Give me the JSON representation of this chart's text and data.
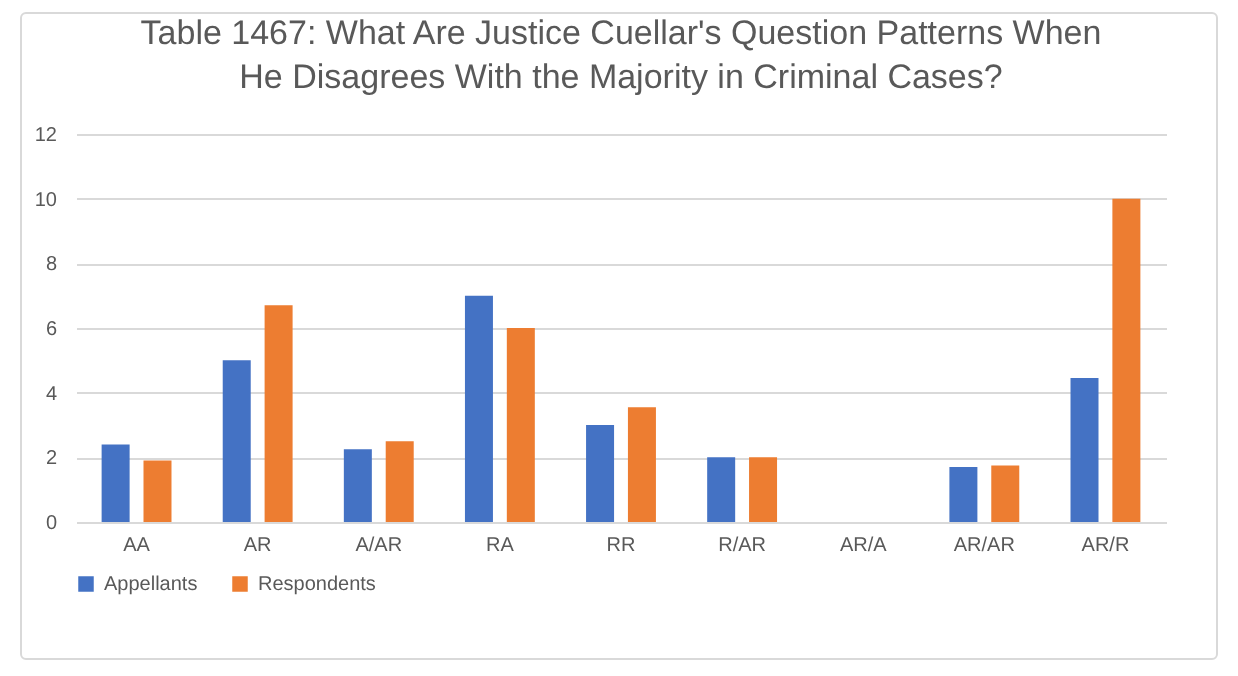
{
  "chart_data": {
    "type": "bar",
    "title": [
      "Table 1467: What Are Justice Cuellar's Question Patterns When",
      "He Disagrees With the Majority in Criminal Cases?"
    ],
    "categories": [
      "AA",
      "AR",
      "A/AR",
      "RA",
      "RR",
      "R/AR",
      "AR/A",
      "AR/AR",
      "AR/R"
    ],
    "series": [
      {
        "name": "Appellants",
        "color": "#4472c4",
        "values": [
          2.4,
          5,
          2.25,
          7,
          3,
          2,
          0,
          1.7,
          4.45
        ]
      },
      {
        "name": "Respondents",
        "color": "#ed7d31",
        "values": [
          1.9,
          6.7,
          2.5,
          6,
          3.55,
          2,
          0,
          1.75,
          10
        ]
      }
    ],
    "ylim": [
      0,
      12
    ],
    "yticks": [
      0,
      2,
      4,
      6,
      8,
      10,
      12
    ],
    "grid": "y",
    "legend": "bottom"
  }
}
